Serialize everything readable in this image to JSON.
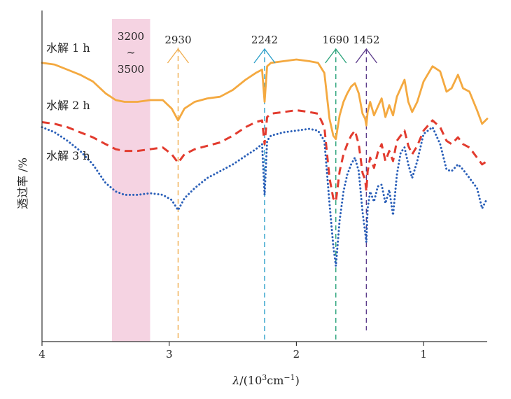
{
  "chart_data": {
    "type": "line",
    "title": "",
    "xlabel_italic": "λ",
    "xlabel_unit_prefix": "/(10",
    "xlabel_exp1": "3",
    "xlabel_unit_mid": "cm",
    "xlabel_exp2": "−1",
    "xlabel_unit_suffix": ")",
    "ylabel": "透过率 /%",
    "xlim": [
      4,
      0.5
    ],
    "x_ticks": [
      4,
      3,
      2,
      1
    ],
    "x_tick_labels": [
      "4",
      "3",
      "2",
      "1"
    ],
    "grid": false,
    "band": {
      "from": 3.45,
      "to": 3.15,
      "color": "#f2c4d8",
      "label_top": "3200",
      "label_mid": "~",
      "label_bottom": "3500"
    },
    "annotations": [
      {
        "x": 2.93,
        "label": "2930",
        "color": "#f0ad4e"
      },
      {
        "x": 2.25,
        "label": "2242",
        "color": "#2a9fc9"
      },
      {
        "x": 1.69,
        "label": "1690",
        "color": "#2aa37a"
      },
      {
        "x": 1.45,
        "label": "1452",
        "color": "#5b3a8a"
      }
    ],
    "series": [
      {
        "name": "水解 1 h",
        "color": "#f4a940",
        "dash": "solid",
        "x": [
          4.0,
          3.9,
          3.8,
          3.7,
          3.6,
          3.5,
          3.42,
          3.35,
          3.25,
          3.15,
          3.05,
          2.98,
          2.93,
          2.88,
          2.8,
          2.7,
          2.6,
          2.5,
          2.4,
          2.32,
          2.27,
          2.25,
          2.23,
          2.2,
          2.1,
          2.0,
          1.9,
          1.83,
          1.78,
          1.74,
          1.71,
          1.69,
          1.66,
          1.63,
          1.6,
          1.57,
          1.54,
          1.51,
          1.48,
          1.46,
          1.45,
          1.44,
          1.42,
          1.39,
          1.36,
          1.33,
          1.3,
          1.27,
          1.24,
          1.21,
          1.18,
          1.15,
          1.12,
          1.09,
          1.05,
          1.0,
          0.93,
          0.87,
          0.82,
          0.78,
          0.73,
          0.69,
          0.64,
          0.58,
          0.54,
          0.5
        ],
        "y": [
          78,
          77,
          74,
          71,
          67,
          60,
          56,
          55,
          55,
          56,
          56,
          51,
          44,
          51,
          55,
          57,
          58,
          62,
          68,
          72,
          74,
          55,
          76,
          78,
          79,
          80,
          79,
          78,
          72,
          45,
          35,
          33,
          47,
          55,
          60,
          64,
          66,
          60,
          48,
          45,
          41,
          49,
          55,
          47,
          52,
          57,
          46,
          53,
          47,
          58,
          63,
          68,
          55,
          49,
          55,
          67,
          76,
          73,
          61,
          63,
          71,
          63,
          61,
          50,
          42,
          45
        ]
      },
      {
        "name": "水解 2 h",
        "color": "#e23b2e",
        "dash": "dashed",
        "x": [
          4.0,
          3.9,
          3.8,
          3.7,
          3.6,
          3.5,
          3.42,
          3.35,
          3.25,
          3.15,
          3.05,
          2.98,
          2.93,
          2.88,
          2.8,
          2.7,
          2.6,
          2.5,
          2.4,
          2.32,
          2.27,
          2.25,
          2.23,
          2.2,
          2.1,
          2.0,
          1.9,
          1.83,
          1.78,
          1.74,
          1.71,
          1.69,
          1.66,
          1.63,
          1.6,
          1.57,
          1.54,
          1.51,
          1.48,
          1.46,
          1.45,
          1.44,
          1.42,
          1.39,
          1.36,
          1.33,
          1.3,
          1.27,
          1.24,
          1.21,
          1.18,
          1.15,
          1.12,
          1.09,
          1.05,
          1.0,
          0.93,
          0.87,
          0.82,
          0.78,
          0.73,
          0.69,
          0.64,
          0.58,
          0.54,
          0.5
        ],
        "y": [
          43,
          42,
          40,
          37,
          34,
          30,
          27,
          26,
          26,
          27,
          28,
          24,
          19,
          24,
          27,
          29,
          31,
          35,
          40,
          43,
          44,
          30,
          46,
          48,
          49,
          50,
          49,
          48,
          40,
          10,
          -2,
          -4,
          14,
          24,
          30,
          35,
          38,
          30,
          13,
          9,
          2,
          14,
          22,
          16,
          25,
          30,
          20,
          26,
          20,
          32,
          35,
          38,
          29,
          24,
          29,
          38,
          44,
          40,
          32,
          30,
          34,
          30,
          28,
          22,
          18,
          20
        ]
      },
      {
        "name": "水解 3 h",
        "color": "#2a5fb8",
        "dash": "dotted",
        "x": [
          4.0,
          3.9,
          3.8,
          3.7,
          3.6,
          3.5,
          3.42,
          3.35,
          3.25,
          3.15,
          3.05,
          2.98,
          2.93,
          2.88,
          2.8,
          2.7,
          2.6,
          2.5,
          2.4,
          2.32,
          2.27,
          2.25,
          2.23,
          2.2,
          2.1,
          2.0,
          1.9,
          1.83,
          1.78,
          1.74,
          1.71,
          1.69,
          1.66,
          1.63,
          1.6,
          1.57,
          1.54,
          1.51,
          1.48,
          1.46,
          1.45,
          1.44,
          1.42,
          1.39,
          1.36,
          1.33,
          1.3,
          1.27,
          1.24,
          1.21,
          1.18,
          1.15,
          1.12,
          1.09,
          1.05,
          1.0,
          0.93,
          0.87,
          0.82,
          0.78,
          0.73,
          0.69,
          0.64,
          0.58,
          0.54,
          0.5
        ],
        "y": [
          40,
          37,
          32,
          26,
          18,
          7,
          2,
          0,
          0,
          1,
          0,
          -3,
          -9,
          -2,
          4,
          10,
          14,
          18,
          23,
          27,
          30,
          0,
          32,
          35,
          37,
          38,
          39,
          38,
          32,
          -5,
          -30,
          -42,
          -15,
          2,
          12,
          18,
          22,
          14,
          -10,
          -22,
          -28,
          -8,
          2,
          -4,
          5,
          6,
          -5,
          3,
          -12,
          12,
          25,
          28,
          18,
          10,
          20,
          36,
          40,
          30,
          15,
          14,
          18,
          15,
          10,
          4,
          -8,
          -2
        ]
      }
    ]
  }
}
